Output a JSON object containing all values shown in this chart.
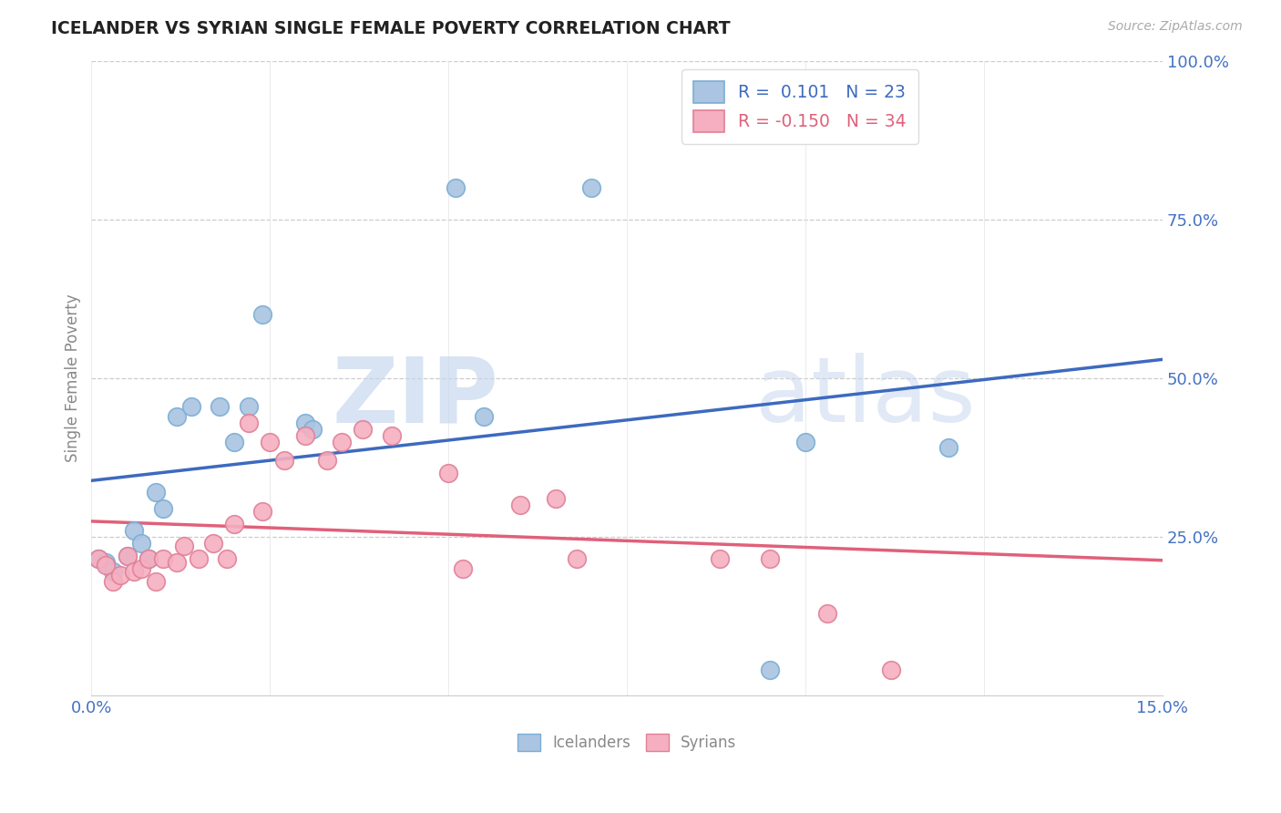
{
  "title": "ICELANDER VS SYRIAN SINGLE FEMALE POVERTY CORRELATION CHART",
  "source": "Source: ZipAtlas.com",
  "ylabel": "Single Female Poverty",
  "xlim": [
    0.0,
    0.15
  ],
  "ylim": [
    0.0,
    1.0
  ],
  "x_ticks": [
    0.0,
    0.025,
    0.05,
    0.075,
    0.1,
    0.125,
    0.15
  ],
  "y_ticks_right": [
    0.25,
    0.5,
    0.75,
    1.0
  ],
  "y_tick_labels_right": [
    "25.0%",
    "50.0%",
    "75.0%",
    "100.0%"
  ],
  "icelander_color": "#aac4e2",
  "icelander_edge": "#7aaed4",
  "syrian_color": "#f5afc0",
  "syrian_edge": "#e08098",
  "trend_iceland_color": "#3d6abf",
  "trend_syria_color": "#e0607a",
  "R_iceland": 0.101,
  "N_iceland": 23,
  "R_syria": -0.15,
  "N_syria": 34,
  "watermark_zip": "ZIP",
  "watermark_atlas": "atlas",
  "legend_label_iceland": "Icelanders",
  "legend_label_syria": "Syrians",
  "iceland_x": [
    0.001,
    0.002,
    0.003,
    0.005,
    0.006,
    0.007,
    0.008,
    0.009,
    0.01,
    0.012,
    0.014,
    0.018,
    0.02,
    0.022,
    0.024,
    0.03,
    0.031,
    0.051,
    0.055,
    0.07,
    0.095,
    0.1,
    0.12
  ],
  "iceland_y": [
    0.215,
    0.21,
    0.195,
    0.22,
    0.26,
    0.24,
    0.215,
    0.32,
    0.295,
    0.44,
    0.455,
    0.455,
    0.4,
    0.455,
    0.6,
    0.43,
    0.42,
    0.8,
    0.44,
    0.8,
    0.04,
    0.4,
    0.39
  ],
  "syria_x": [
    0.001,
    0.002,
    0.003,
    0.004,
    0.005,
    0.006,
    0.007,
    0.008,
    0.009,
    0.01,
    0.012,
    0.013,
    0.015,
    0.017,
    0.019,
    0.02,
    0.022,
    0.024,
    0.025,
    0.027,
    0.03,
    0.033,
    0.035,
    0.038,
    0.042,
    0.05,
    0.052,
    0.06,
    0.065,
    0.068,
    0.088,
    0.095,
    0.103,
    0.112
  ],
  "syria_y": [
    0.215,
    0.205,
    0.18,
    0.19,
    0.22,
    0.195,
    0.2,
    0.215,
    0.18,
    0.215,
    0.21,
    0.235,
    0.215,
    0.24,
    0.215,
    0.27,
    0.43,
    0.29,
    0.4,
    0.37,
    0.41,
    0.37,
    0.4,
    0.42,
    0.41,
    0.35,
    0.2,
    0.3,
    0.31,
    0.215,
    0.215,
    0.215,
    0.13,
    0.04
  ],
  "background_color": "#ffffff",
  "grid_color": "#cccccc",
  "title_color": "#222222",
  "axis_right_color": "#4472c4",
  "axis_label_color": "#888888"
}
